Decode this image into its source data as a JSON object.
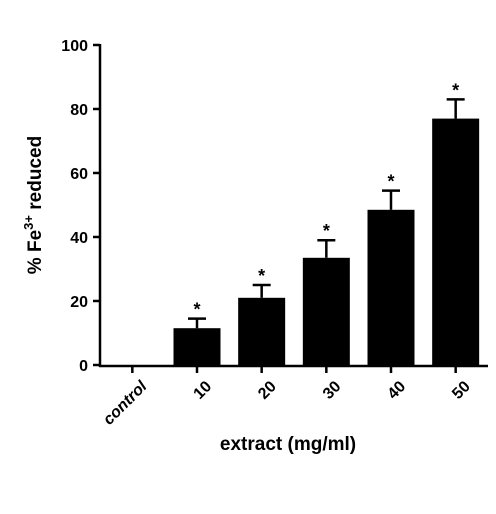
{
  "chart_data": {
    "type": "bar",
    "categories": [
      "control",
      "10",
      "20",
      "30",
      "40",
      "50"
    ],
    "values": [
      0,
      11.5,
      21,
      33.5,
      48.5,
      77
    ],
    "errors": [
      0,
      3,
      4,
      5.5,
      6,
      6
    ],
    "significance": [
      "",
      "*",
      "*",
      "*",
      "*",
      "*"
    ],
    "xlabel": "extract (mg/ml)",
    "ylabel": {
      "prefix": "% Fe",
      "sup": "3+",
      "suffix": " reduced"
    },
    "ylim": [
      0,
      100
    ],
    "yticks": [
      0,
      20,
      40,
      60,
      80,
      100
    ],
    "grid": false,
    "bar_color": "#000000"
  }
}
